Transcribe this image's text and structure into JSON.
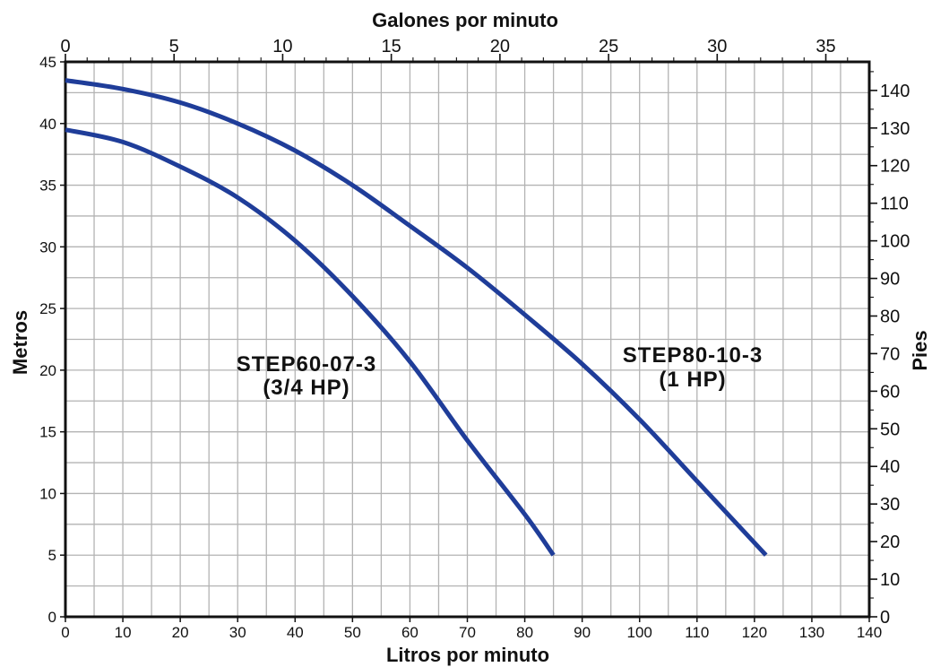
{
  "chart_data": {
    "type": "line",
    "xlabel_bottom": "Litros por minuto",
    "xlabel_top": "Galones por minuto",
    "ylabel_left": "Metros",
    "ylabel_right": "Pies",
    "x_bottom": {
      "range": [
        0,
        140
      ],
      "ticks": [
        "0",
        "10",
        "20",
        "30",
        "40",
        "50",
        "60",
        "70",
        "80",
        "90",
        "100",
        "110",
        "120",
        "130",
        "140"
      ]
    },
    "x_top": {
      "range": [
        0,
        37
      ],
      "ticks": [
        "0",
        "5",
        "10",
        "15",
        "20",
        "25",
        "30",
        "35"
      ]
    },
    "y_left": {
      "range": [
        0,
        45
      ],
      "ticks": [
        "0",
        "5",
        "10",
        "15",
        "20",
        "25",
        "30",
        "35",
        "40",
        "45"
      ]
    },
    "y_right": {
      "range": [
        0,
        147.6
      ],
      "ticks": [
        "0",
        "10",
        "20",
        "30",
        "40",
        "50",
        "60",
        "70",
        "80",
        "90",
        "100",
        "110",
        "120",
        "130",
        "140"
      ]
    },
    "grid": true,
    "series": [
      {
        "name": "STEP60-07-3",
        "subtitle": "(3/4 HP)",
        "color": "#1f3d99",
        "x": [
          0,
          10,
          20,
          30,
          40,
          50,
          60,
          70,
          80,
          85
        ],
        "y": [
          39.5,
          38.5,
          36.5,
          34.0,
          30.5,
          26.0,
          20.7,
          14.3,
          8.3,
          5.0
        ]
      },
      {
        "name": "STEP80-10-3",
        "subtitle": "(1 HP)",
        "color": "#1f3d99",
        "x": [
          0,
          10,
          20,
          30,
          40,
          50,
          60,
          70,
          80,
          90,
          100,
          110,
          122
        ],
        "y": [
          43.5,
          42.8,
          41.7,
          40.0,
          37.8,
          35.0,
          31.7,
          28.3,
          24.5,
          20.5,
          16.0,
          11.0,
          5.0
        ]
      }
    ]
  }
}
